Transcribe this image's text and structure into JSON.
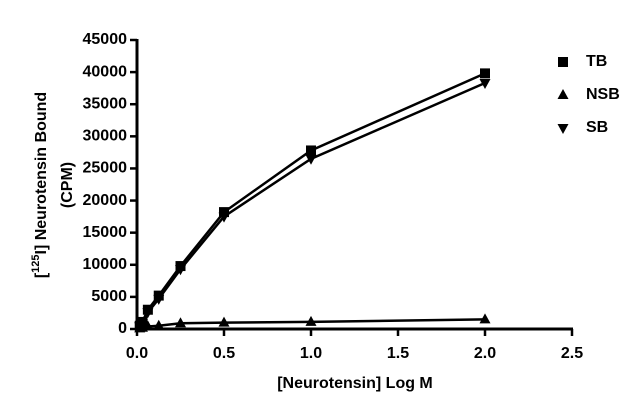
{
  "chart_data": {
    "type": "line",
    "x_label": "[Neurotensin] Log M",
    "y_label": [
      "[",
      "125",
      "I] Neurotensin Bound",
      "(CPM)"
    ],
    "x": [
      0.0156,
      0.03125,
      0.0625,
      0.125,
      0.25,
      0.5,
      1.0,
      2.0
    ],
    "series": [
      {
        "name": "TB",
        "marker": "square",
        "color": "#000000",
        "values": [
          500,
          1100,
          3000,
          5200,
          9800,
          18200,
          27800,
          39800
        ]
      },
      {
        "name": "NSB",
        "marker": "triangle-up",
        "color": "#000000",
        "values": [
          100,
          200,
          400,
          500,
          900,
          1000,
          1100,
          1500
        ]
      },
      {
        "name": "SB",
        "marker": "triangle-down",
        "color": "#000000",
        "values": [
          400,
          900,
          2600,
          4700,
          9300,
          17500,
          26500,
          38300
        ]
      }
    ],
    "xlim": [
      0,
      2.5
    ],
    "xticks": [
      {
        "value": 0,
        "label": "0.0"
      },
      0.5,
      {
        "value": 1,
        "label": "1.0"
      },
      1.5,
      {
        "value": 2,
        "label": "2.0"
      },
      2.5
    ],
    "ylim": [
      0,
      45000
    ],
    "yticks": [
      0,
      5000,
      10000,
      15000,
      20000,
      25000,
      30000,
      35000,
      40000,
      45000
    ],
    "grid": false,
    "legend": "top-right"
  }
}
